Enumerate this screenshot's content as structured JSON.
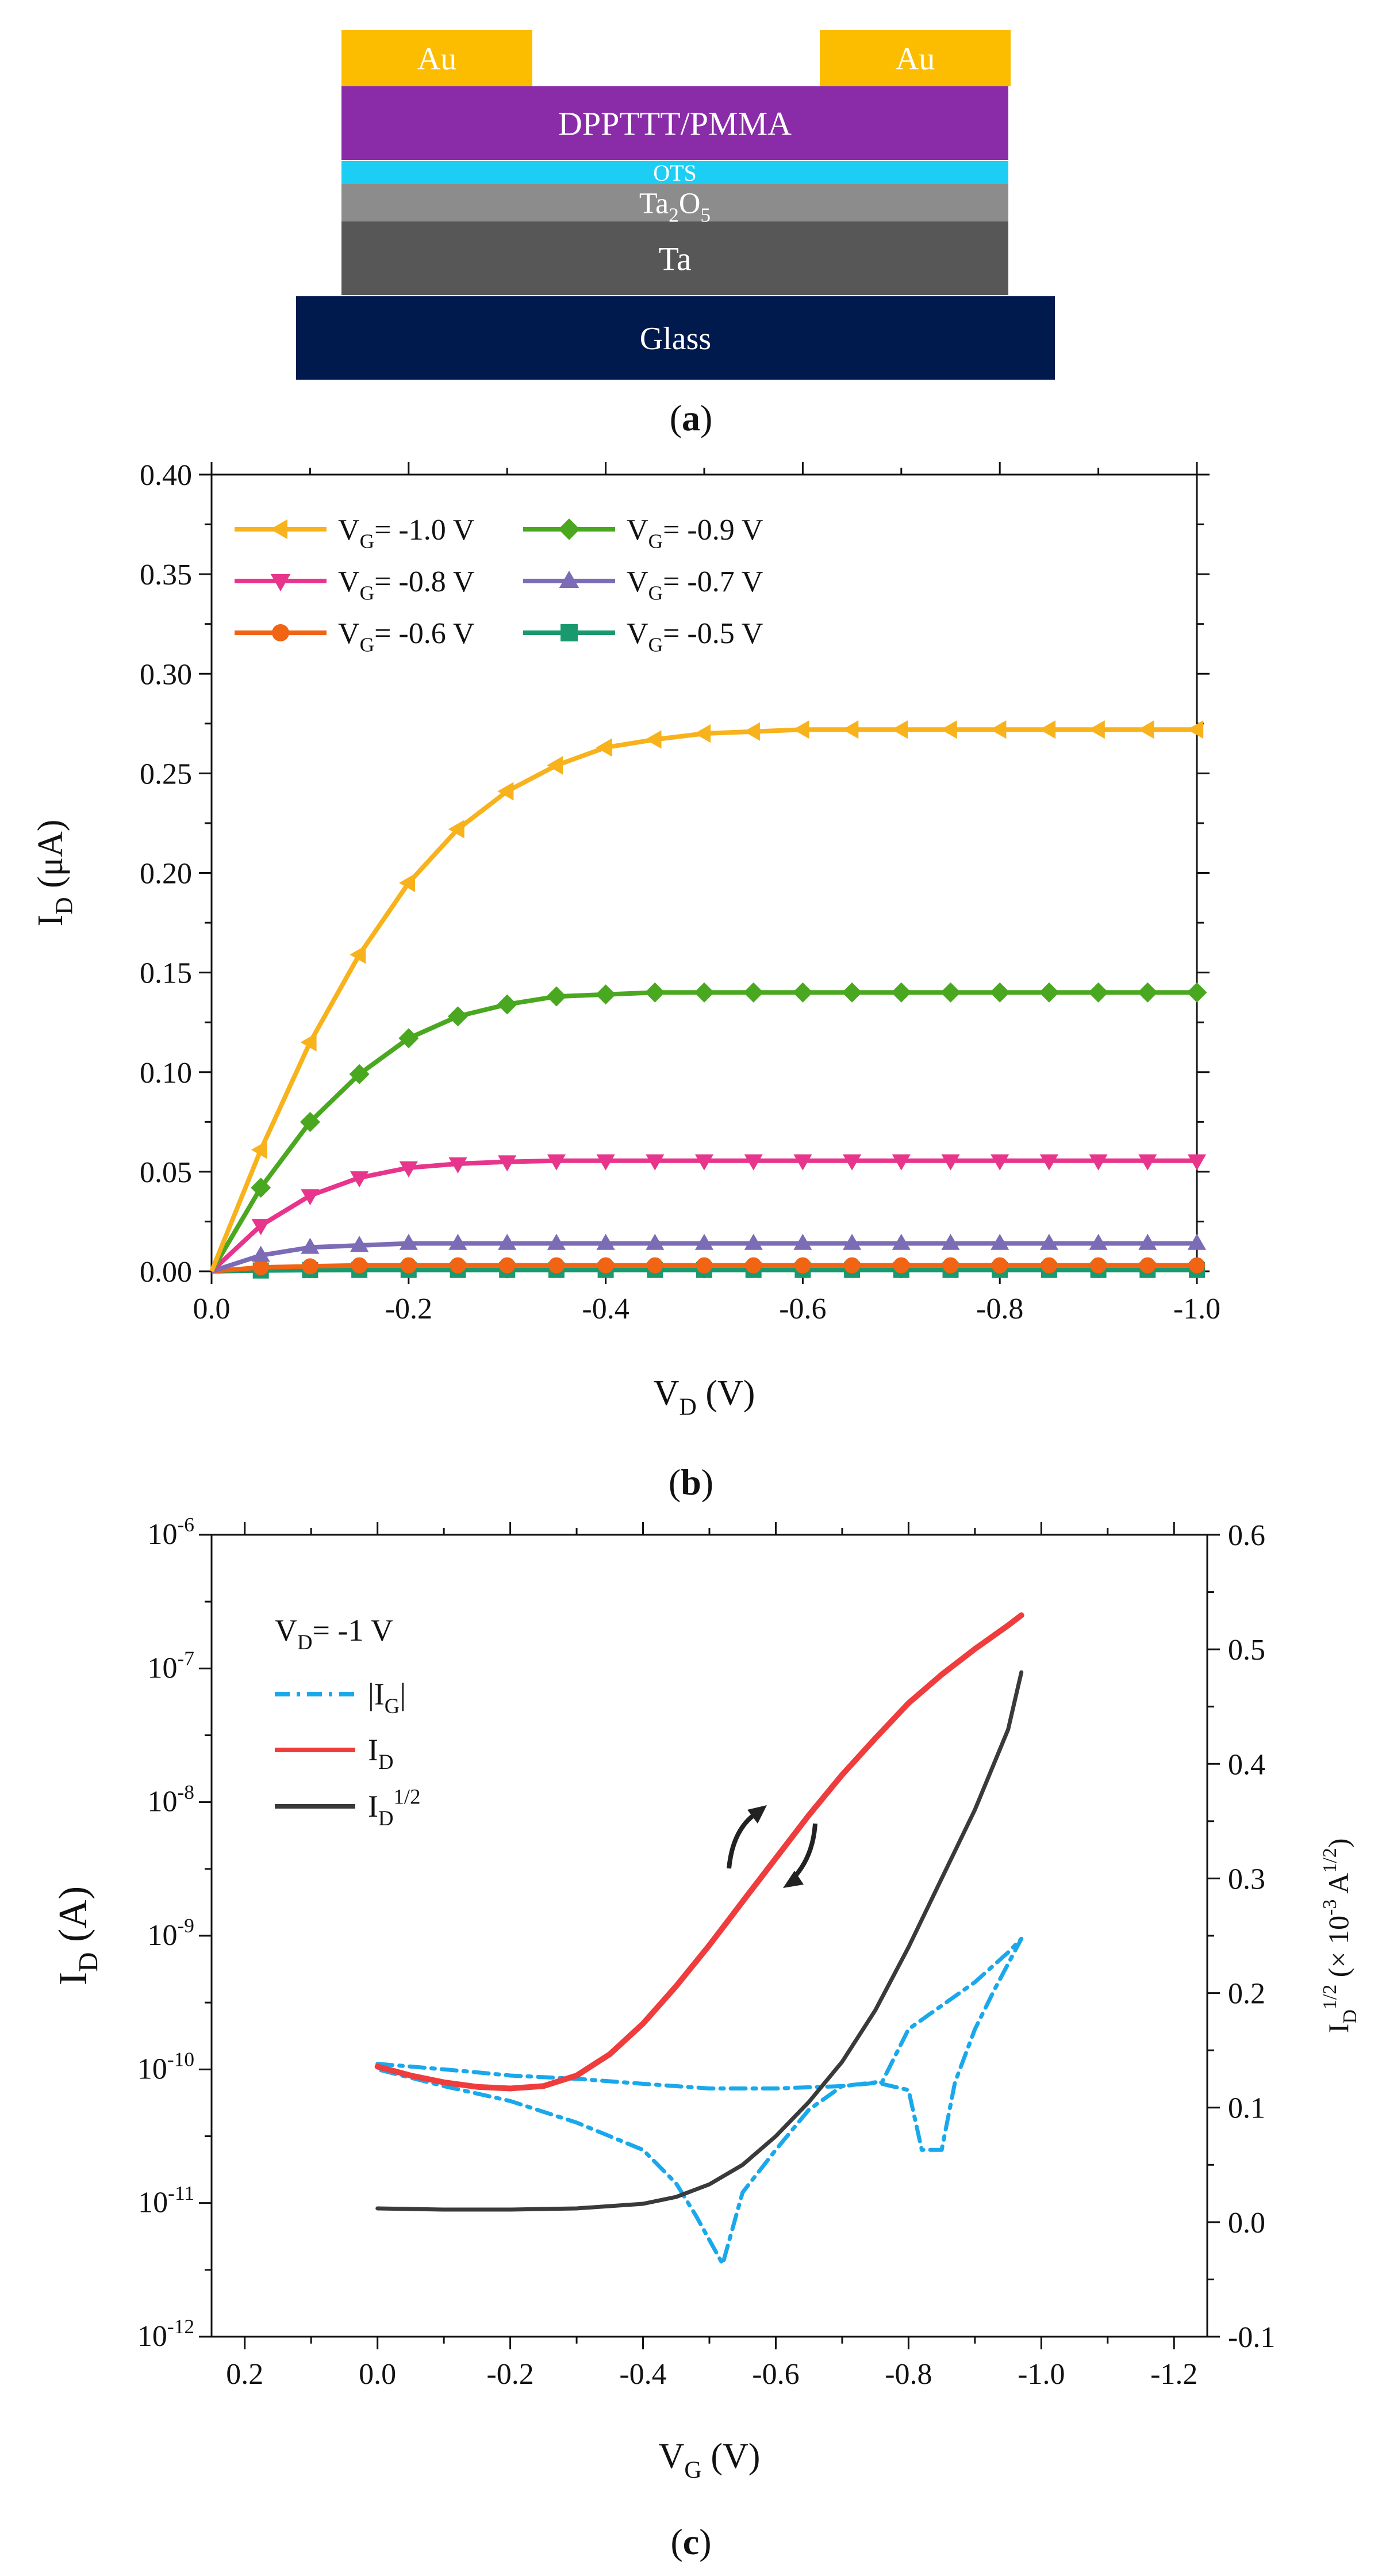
{
  "panel_a": {
    "layers": [
      {
        "name": "Glass",
        "color": "#001a4e",
        "text_color": "#ffffff"
      },
      {
        "name": "Ta",
        "color": "#575757",
        "text_color": "#ffffff"
      },
      {
        "name": "Ta2O5",
        "base": "Ta",
        "sub": "2",
        "tail": "O",
        "sub2": "5",
        "color": "#8c8c8c",
        "text_color": "#ffffff"
      },
      {
        "name": "OTS",
        "color": "#1ccdf4",
        "text_color": "#ffffff"
      },
      {
        "name": "DPPTTT/PMMA",
        "color": "#8a2ca8",
        "text_color": "#ffffff"
      },
      {
        "name": "Au",
        "color": "#fcbd00",
        "text_color": "#ffffff"
      },
      {
        "name": "Au",
        "color": "#fcbd00",
        "text_color": "#ffffff"
      }
    ],
    "caption": {
      "open": "(",
      "letter": "a",
      "close": ")"
    }
  },
  "panel_b": {
    "caption": {
      "open": "(",
      "letter": "b",
      "close": ")"
    }
  },
  "panel_c": {
    "caption": {
      "open": "(",
      "letter": "c",
      "close": ")"
    }
  },
  "chart_data": [
    {
      "type": "line",
      "panel": "b",
      "xlabel": {
        "main": "V",
        "sub": "D",
        "tail": " (V)"
      },
      "ylabel": {
        "main": "I",
        "sub": "D",
        "tail": " (μA)"
      },
      "xlim": [
        0.0,
        -1.0
      ],
      "ylim": [
        0.0,
        0.4
      ],
      "x_ticks": [
        "0.0",
        "-0.2",
        "-0.4",
        "-0.6",
        "-0.8",
        "-1.0"
      ],
      "x_tick_values": [
        0,
        -0.2,
        -0.4,
        -0.6,
        -0.8,
        -1.0
      ],
      "y_ticks": [
        "0.00",
        "0.05",
        "0.10",
        "0.15",
        "0.20",
        "0.25",
        "0.30",
        "0.35",
        "0.40"
      ],
      "y_tick_values": [
        0,
        0.05,
        0.1,
        0.15,
        0.2,
        0.25,
        0.3,
        0.35,
        0.4
      ],
      "legend_position": "top-left",
      "x": [
        0,
        -0.05,
        -0.1,
        -0.15,
        -0.2,
        -0.25,
        -0.3,
        -0.35,
        -0.4,
        -0.45,
        -0.5,
        -0.55,
        -0.6,
        -0.65,
        -0.7,
        -0.75,
        -0.8,
        -0.85,
        -0.9,
        -0.95,
        -1.0
      ],
      "series": [
        {
          "name": "V_G= -1.0 V",
          "label_main": "V",
          "label_sub": "G",
          "label_tail": "= -1.0 V",
          "color": "#f7b21c",
          "marker": "triangle-left",
          "values": [
            0,
            0.061,
            0.115,
            0.159,
            0.195,
            0.222,
            0.241,
            0.254,
            0.263,
            0.267,
            0.27,
            0.271,
            0.272,
            0.272,
            0.272,
            0.272,
            0.272,
            0.272,
            0.272,
            0.272,
            0.272
          ]
        },
        {
          "name": "V_G= -0.9 V",
          "label_main": "V",
          "label_sub": "G",
          "label_tail": "= -0.9 V",
          "color": "#4aa820",
          "marker": "diamond",
          "values": [
            0,
            0.042,
            0.075,
            0.099,
            0.117,
            0.128,
            0.134,
            0.138,
            0.139,
            0.14,
            0.14,
            0.14,
            0.14,
            0.14,
            0.14,
            0.14,
            0.14,
            0.14,
            0.14,
            0.14,
            0.14
          ]
        },
        {
          "name": "V_G= -0.8 V",
          "label_main": "V",
          "label_sub": "G",
          "label_tail": "= -0.8 V",
          "color": "#e8358c",
          "marker": "triangle-down",
          "values": [
            0,
            0.023,
            0.038,
            0.047,
            0.052,
            0.054,
            0.055,
            0.0555,
            0.0555,
            0.0555,
            0.0555,
            0.0555,
            0.0555,
            0.0555,
            0.0555,
            0.0555,
            0.0555,
            0.0555,
            0.0555,
            0.0555,
            0.0555
          ]
        },
        {
          "name": "V_G= -0.7 V",
          "label_main": "V",
          "label_sub": "G",
          "label_tail": "= -0.7 V",
          "color": "#7c6cb6",
          "marker": "triangle-up",
          "values": [
            0,
            0.008,
            0.012,
            0.013,
            0.014,
            0.014,
            0.014,
            0.014,
            0.014,
            0.014,
            0.014,
            0.014,
            0.014,
            0.014,
            0.014,
            0.014,
            0.014,
            0.014,
            0.014,
            0.014,
            0.014
          ]
        },
        {
          "name": "V_G= -0.6 V",
          "label_main": "V",
          "label_sub": "G",
          "label_tail": "= -0.6 V",
          "color": "#f06414",
          "marker": "circle",
          "values": [
            0,
            0.002,
            0.0025,
            0.003,
            0.003,
            0.003,
            0.003,
            0.003,
            0.003,
            0.003,
            0.003,
            0.003,
            0.003,
            0.003,
            0.003,
            0.003,
            0.003,
            0.003,
            0.003,
            0.003,
            0.003
          ]
        },
        {
          "name": "V_G= -0.5 V",
          "label_main": "V",
          "label_sub": "G",
          "label_tail": "= -0.5 V",
          "color": "#189a6e",
          "marker": "square",
          "values": [
            0,
            0.0004,
            0.0006,
            0.0007,
            0.0007,
            0.0007,
            0.0007,
            0.0007,
            0.0007,
            0.0007,
            0.0007,
            0.0007,
            0.0007,
            0.0007,
            0.0007,
            0.0007,
            0.0007,
            0.0007,
            0.0007,
            0.0007,
            0.0007
          ]
        }
      ]
    },
    {
      "type": "line",
      "panel": "c",
      "xlabel": {
        "main": "V",
        "sub": "G",
        "tail": " (V)"
      },
      "ylabel_left": {
        "main": "I",
        "sub": "D",
        "tail": " (A)"
      },
      "ylabel_right": {
        "main": "I",
        "sub": "D",
        "sup": "1/2",
        "tail": " (× 10",
        "sup2": "-3",
        "tail2": " A",
        "sup3": "1/2",
        "tail3": ")"
      },
      "xlim": [
        0.25,
        -1.25
      ],
      "ylim_left_log10": [
        -12,
        -6
      ],
      "ylim_right": [
        -0.1,
        0.6
      ],
      "y_scale_left": "log",
      "x_ticks": [
        "0.2",
        "0.0",
        "-0.2",
        "-0.4",
        "-0.6",
        "-0.8",
        "-1.0",
        "-1.2"
      ],
      "x_tick_values": [
        0.2,
        0,
        -0.2,
        -0.4,
        -0.6,
        -0.8,
        -1.0,
        -1.2
      ],
      "y_left_ticks": [
        {
          "base": "10",
          "exp": "-6",
          "log": -6
        },
        {
          "base": "10",
          "exp": "-7",
          "log": -7
        },
        {
          "base": "10",
          "exp": "-8",
          "log": -8
        },
        {
          "base": "10",
          "exp": "-9",
          "log": -9
        },
        {
          "base": "10",
          "exp": "-10",
          "log": -10
        },
        {
          "base": "10",
          "exp": "-11",
          "log": -11
        },
        {
          "base": "10",
          "exp": "-12",
          "log": -12
        }
      ],
      "y_right_ticks": [
        "0.6",
        "0.5",
        "0.4",
        "0.3",
        "0.2",
        "0.1",
        "0.0",
        "-0.1"
      ],
      "y_right_tick_values": [
        0.6,
        0.5,
        0.4,
        0.3,
        0.2,
        0.1,
        0.0,
        -0.1
      ],
      "condition": {
        "main": "V",
        "sub": "D",
        "tail": "= -1 V"
      },
      "legend_position": "top-left",
      "series": [
        {
          "name": "|I_G|",
          "label_pre": "|I",
          "label_sub": "G",
          "label_tail": "|",
          "color": "#1aa8ec",
          "style": "dashdot",
          "axis": "left",
          "points": [
            [
              0.0,
              1.1e-10
            ],
            [
              -0.05,
              1.05e-10
            ],
            [
              -0.1,
              1e-10
            ],
            [
              -0.15,
              9.5e-11
            ],
            [
              -0.2,
              9e-11
            ],
            [
              -0.3,
              8.5e-11
            ],
            [
              -0.4,
              7.8e-11
            ],
            [
              -0.5,
              7.2e-11
            ],
            [
              -0.6,
              7.2e-11
            ],
            [
              -0.7,
              7.5e-11
            ],
            [
              -0.76,
              8e-11
            ],
            [
              -0.8,
              2e-10
            ],
            [
              -0.85,
              3e-10
            ],
            [
              -0.9,
              4.5e-10
            ],
            [
              -0.95,
              7.5e-10
            ],
            [
              -0.97,
              9.5e-10
            ],
            [
              -0.93,
              4e-10
            ],
            [
              -0.9,
              2e-10
            ],
            [
              -0.87,
              8e-11
            ],
            [
              -0.85,
              2.5e-11
            ],
            [
              -0.82,
              2.5e-11
            ],
            [
              -0.8,
              7e-11
            ],
            [
              -0.75,
              8e-11
            ],
            [
              -0.7,
              7.5e-11
            ],
            [
              -0.65,
              5e-11
            ],
            [
              -0.6,
              2.5e-11
            ],
            [
              -0.55,
              1.2e-11
            ],
            [
              -0.52,
              3.5e-12
            ],
            [
              -0.48,
              8e-12
            ],
            [
              -0.45,
              1.4e-11
            ],
            [
              -0.4,
              2.5e-11
            ],
            [
              -0.3,
              4e-11
            ],
            [
              -0.2,
              5.8e-11
            ],
            [
              -0.1,
              7.5e-11
            ],
            [
              0.0,
              1e-10
            ]
          ]
        },
        {
          "name": "I_D",
          "label_pre": "I",
          "label_sub": "D",
          "label_tail": "",
          "color": "#ef3c3c",
          "style": "solid",
          "axis": "left",
          "points": [
            [
              0.0,
              1.05e-10
            ],
            [
              -0.05,
              9e-11
            ],
            [
              -0.1,
              8e-11
            ],
            [
              -0.15,
              7.4e-11
            ],
            [
              -0.2,
              7.2e-11
            ],
            [
              -0.25,
              7.5e-11
            ],
            [
              -0.3,
              9e-11
            ],
            [
              -0.35,
              1.3e-10
            ],
            [
              -0.4,
              2.2e-10
            ],
            [
              -0.45,
              4.2e-10
            ],
            [
              -0.5,
              8.5e-10
            ],
            [
              -0.55,
              1.8e-09
            ],
            [
              -0.6,
              3.8e-09
            ],
            [
              -0.65,
              8e-09
            ],
            [
              -0.7,
              1.6e-08
            ],
            [
              -0.75,
              3e-08
            ],
            [
              -0.8,
              5.5e-08
            ],
            [
              -0.85,
              9e-08
            ],
            [
              -0.9,
              1.4e-07
            ],
            [
              -0.95,
              2.1e-07
            ],
            [
              -0.97,
              2.5e-07
            ]
          ]
        },
        {
          "name": "I_D^1/2",
          "label_pre": "I",
          "label_sub": "D",
          "label_sup": "1/2",
          "label_tail": "",
          "color": "#3a3a3a",
          "style": "solid",
          "axis": "right",
          "points": [
            [
              0.0,
              0.012
            ],
            [
              -0.1,
              0.011
            ],
            [
              -0.2,
              0.011
            ],
            [
              -0.3,
              0.012
            ],
            [
              -0.4,
              0.016
            ],
            [
              -0.45,
              0.022
            ],
            [
              -0.5,
              0.033
            ],
            [
              -0.55,
              0.05
            ],
            [
              -0.6,
              0.075
            ],
            [
              -0.65,
              0.105
            ],
            [
              -0.7,
              0.14
            ],
            [
              -0.75,
              0.185
            ],
            [
              -0.8,
              0.24
            ],
            [
              -0.85,
              0.3
            ],
            [
              -0.9,
              0.36
            ],
            [
              -0.95,
              0.43
            ],
            [
              -0.97,
              0.48
            ]
          ]
        }
      ]
    }
  ]
}
